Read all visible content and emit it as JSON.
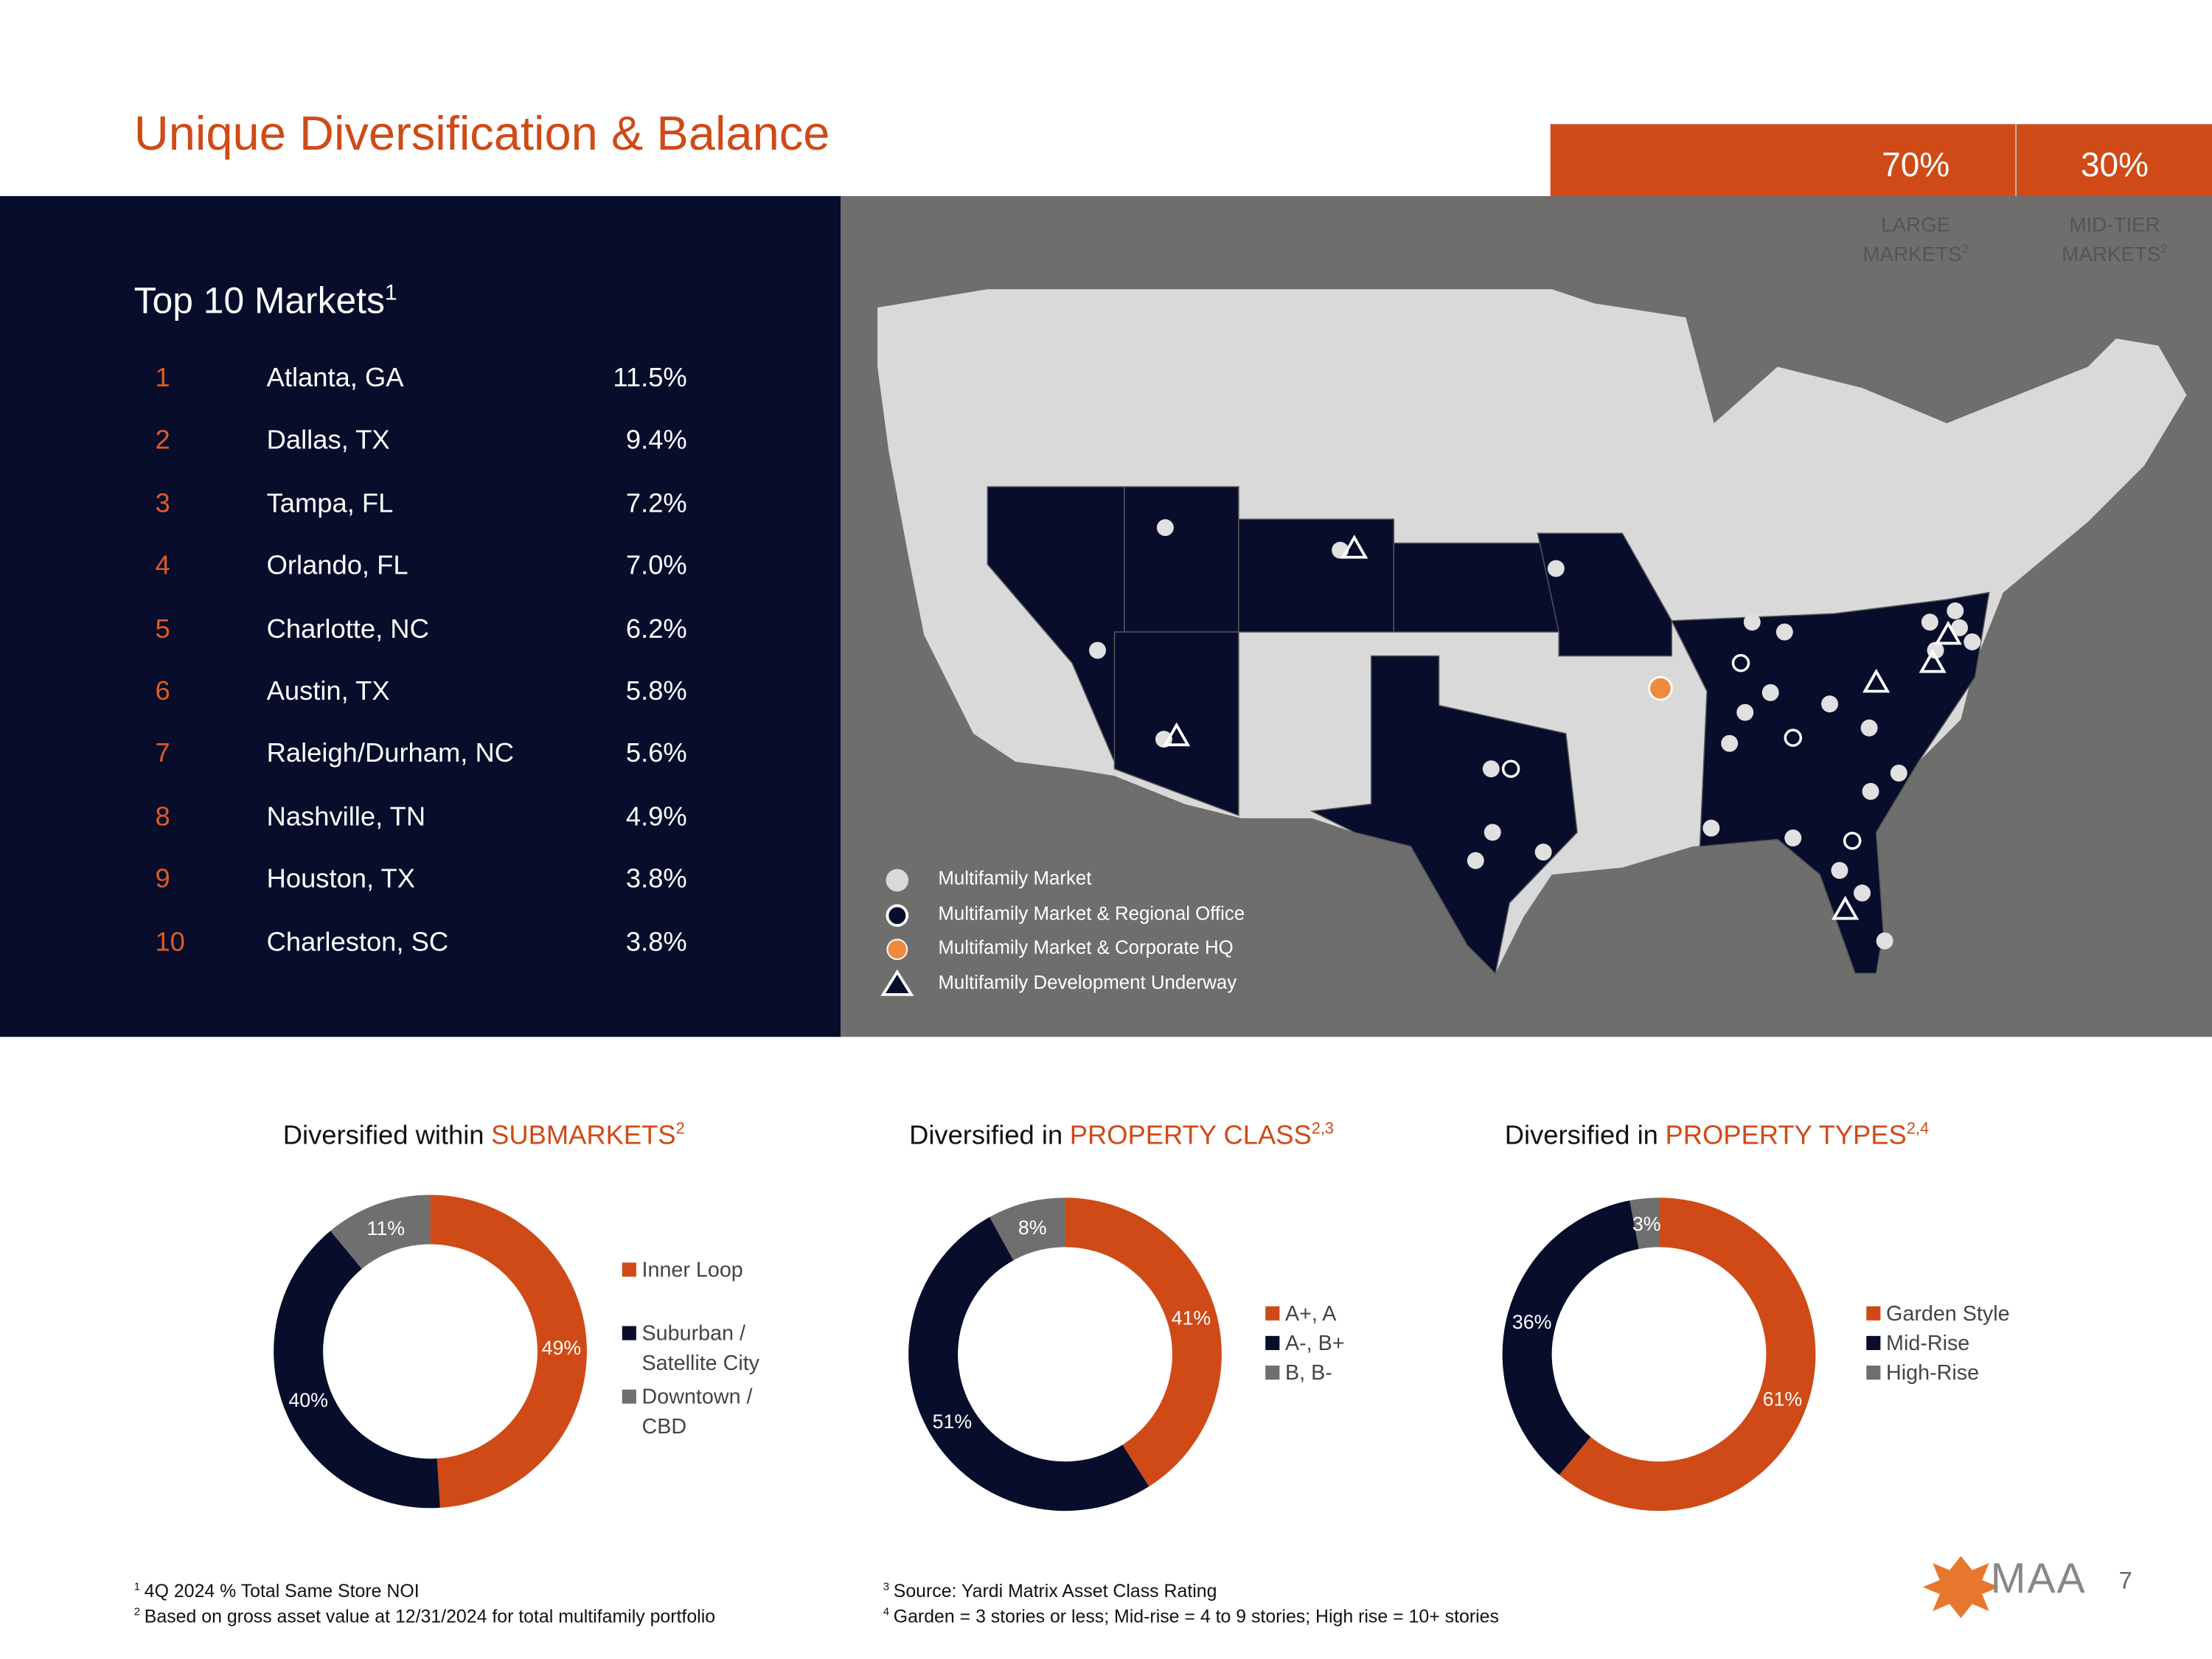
{
  "header": {
    "title": "Unique Diversification & Balance",
    "stats": [
      {
        "value": "70%",
        "label": "LARGE MARKETS",
        "note": "2"
      },
      {
        "value": "30%",
        "label": "MID-TIER MARKETS",
        "note": "2"
      }
    ]
  },
  "top_markets": {
    "title": "Top 10 Markets",
    "note": "1",
    "rows": [
      [
        1,
        "Atlanta, GA",
        "11.5%"
      ],
      [
        2,
        "Dallas, TX",
        "9.4%"
      ],
      [
        3,
        "Tampa, FL",
        "7.2%"
      ],
      [
        4,
        "Orlando, FL",
        "7.0%"
      ],
      [
        5,
        "Charlotte, NC",
        "6.2%"
      ],
      [
        6,
        "Austin, TX",
        "5.8%"
      ],
      [
        7,
        "Raleigh/Durham, NC",
        "5.6%"
      ],
      [
        8,
        "Nashville, TN",
        "4.9%"
      ],
      [
        9,
        "Houston, TX",
        "3.8%"
      ],
      [
        10,
        "Charleston, SC",
        "3.8%"
      ]
    ]
  },
  "map_legend": [
    "Multifamily Market",
    "Multifamily Market & Regional Office",
    "Multifamily Market & Corporate HQ",
    "Multifamily Development Underway"
  ],
  "chart_data": [
    {
      "type": "pie",
      "title": {
        "text": "Diversified within",
        "highlight": "SUBMARKETS",
        "note": "2"
      },
      "categories": [
        "Inner Loop",
        "Suburban / Satellite City",
        "Downtown / CBD"
      ],
      "values": [
        49,
        40,
        11
      ],
      "value_labels": [
        "49%",
        "40%",
        "11%"
      ],
      "colors": [
        "#cf4a17",
        "#070d2b",
        "#6f6f6f"
      ]
    },
    {
      "type": "pie",
      "title": {
        "text": "Diversified in",
        "highlight": "PROPERTY CLASS",
        "note": "2,3"
      },
      "categories": [
        "A+, A",
        "A-, B+",
        "B, B-"
      ],
      "values": [
        41,
        51,
        8
      ],
      "value_labels": [
        "41%",
        "51%",
        "8%"
      ],
      "colors": [
        "#cf4a17",
        "#070d2b",
        "#6f6f6f"
      ]
    },
    {
      "type": "pie",
      "title": {
        "text": "Diversified in",
        "highlight": "PROPERTY TYPES",
        "note": "2,4"
      },
      "categories": [
        "Garden Style",
        "Mid-Rise",
        "High-Rise"
      ],
      "values": [
        61,
        36,
        3
      ],
      "value_labels": [
        "61%",
        "36%",
        "3%"
      ],
      "colors": [
        "#cf4a17",
        "#070d2b",
        "#6f6f6f"
      ]
    }
  ],
  "footnotes": [
    {
      "mark": "1",
      "text": "4Q 2024 % Total Same Store NOI"
    },
    {
      "mark": "2",
      "text": "Based on gross asset value at 12/31/2024 for total multifamily portfolio"
    },
    {
      "mark": "3",
      "text": "Source: Yardi Matrix Asset Class Rating"
    },
    {
      "mark": "4",
      "text": "Garden = 3 stories or less; Mid-rise = 4 to 9 stories; High rise = 10+ stories"
    }
  ],
  "logo": "MAA",
  "page_number": 7
}
